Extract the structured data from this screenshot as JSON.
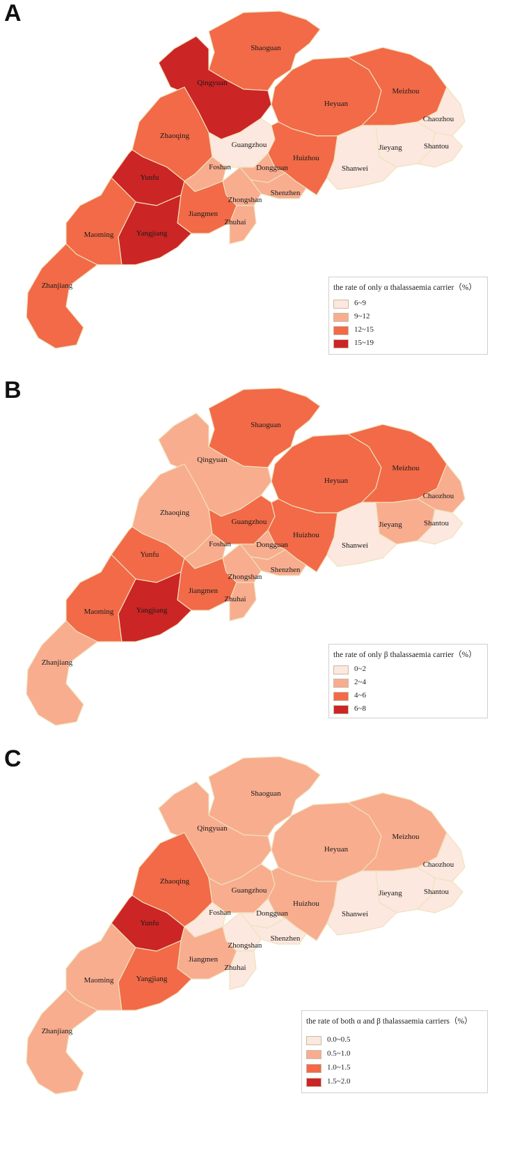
{
  "colors": {
    "c0": "#fce8de",
    "c1": "#f8ad8f",
    "c2": "#f26a47",
    "c3": "#cc2525",
    "border": "#efe2bd"
  },
  "panels": [
    {
      "letter": "A",
      "legend": {
        "title": "the rate of only α thalassaemia carrier（%）",
        "items": [
          "6~9",
          "9~12",
          "12~15",
          "15~19"
        ]
      },
      "classes": {
        "Shaoguan": 2,
        "Qingyuan": 3,
        "Heyuan": 2,
        "Meizhou": 2,
        "Chaozhou": 0,
        "Zhaoqing": 2,
        "Guangzhou": 0,
        "Huizhou": 2,
        "Jieyang": 0,
        "Shantou": 0,
        "Shanwei": 0,
        "Foshan": 1,
        "Dongguan": 1,
        "Yunfu": 3,
        "Shenzhen": 1,
        "Zhongshan": 1,
        "Jiangmen": 2,
        "Zhuhai": 1,
        "Maoming": 2,
        "Yangjiang": 3,
        "Zhanjiang": 2
      }
    },
    {
      "letter": "B",
      "legend": {
        "title": "the rate of only β thalassaemia carrier（%）",
        "items": [
          "0~2",
          "2~4",
          "4~6",
          "6~8"
        ]
      },
      "classes": {
        "Shaoguan": 2,
        "Qingyuan": 1,
        "Heyuan": 2,
        "Meizhou": 2,
        "Chaozhou": 1,
        "Zhaoqing": 1,
        "Guangzhou": 2,
        "Huizhou": 2,
        "Jieyang": 1,
        "Shantou": 0,
        "Shanwei": 0,
        "Foshan": 1,
        "Dongguan": 1,
        "Yunfu": 2,
        "Shenzhen": 1,
        "Zhongshan": 1,
        "Jiangmen": 2,
        "Zhuhai": 1,
        "Maoming": 2,
        "Yangjiang": 3,
        "Zhanjiang": 1
      }
    },
    {
      "letter": "C",
      "legend": {
        "title": "the rate of both α and β thalassaemia carriers（%）",
        "items": [
          "0.0~0.5",
          "0.5~1.0",
          "1.0~1.5",
          "1.5~2.0"
        ]
      },
      "classes": {
        "Shaoguan": 1,
        "Qingyuan": 1,
        "Heyuan": 1,
        "Meizhou": 1,
        "Chaozhou": 0,
        "Zhaoqing": 2,
        "Guangzhou": 1,
        "Huizhou": 1,
        "Jieyang": 0,
        "Shantou": 0,
        "Shanwei": 0,
        "Foshan": 0,
        "Dongguan": 0,
        "Yunfu": 3,
        "Shenzhen": 0,
        "Zhongshan": 0,
        "Jiangmen": 1,
        "Zhuhai": 0,
        "Maoming": 1,
        "Yangjiang": 2,
        "Zhanjiang": 1
      }
    }
  ],
  "city_names": [
    "Shaoguan",
    "Qingyuan",
    "Heyuan",
    "Meizhou",
    "Chaozhou",
    "Zhaoqing",
    "Guangzhou",
    "Huizhou",
    "Jieyang",
    "Shantou",
    "Shanwei",
    "Foshan",
    "Dongguan",
    "Yunfu",
    "Shenzhen",
    "Zhongshan",
    "Jiangmen",
    "Zhuhai",
    "Maoming",
    "Yangjiang",
    "Zhanjiang"
  ]
}
